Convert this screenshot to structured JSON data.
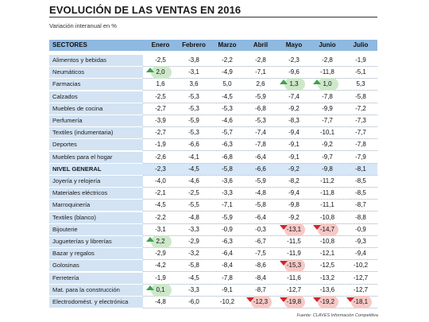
{
  "title": "EVOLUCIÓN DE LAS VENTAS EN 2016",
  "subtitle": "Variación interanual en %",
  "source": "Fuente: CLAVES Información Competitiva",
  "columns": [
    "SECTORES",
    "Enero",
    "Febrero",
    "Marzo",
    "Abril",
    "Mayo",
    "Junio",
    "Julio"
  ],
  "rows": [
    {
      "sector": "Alimentos y bebidas",
      "values": [
        "-2,5",
        "-3,8",
        "-2,2",
        "-2,8",
        "-2,3",
        "-2,8",
        "-1,9"
      ],
      "marks": [
        null,
        null,
        null,
        null,
        null,
        null,
        null
      ]
    },
    {
      "sector": "Neumáticos",
      "values": [
        "2,0",
        "-3,1",
        "-4,9",
        "-7,1",
        "-9,6",
        "-11,8",
        "-5,1"
      ],
      "marks": [
        "up",
        null,
        null,
        null,
        null,
        null,
        null
      ]
    },
    {
      "sector": "Farmacias",
      "values": [
        "1,6",
        "3,6",
        "5,0",
        "2,6",
        "1,3",
        "1,0",
        "5,3"
      ],
      "marks": [
        null,
        null,
        null,
        null,
        "up",
        "up",
        null
      ]
    },
    {
      "sector": "Calzados",
      "values": [
        "-2,5",
        "-5,3",
        "-4,5",
        "-5,9",
        "-7,4",
        "-7,8",
        "-5,8"
      ],
      "marks": [
        null,
        null,
        null,
        null,
        null,
        null,
        null
      ]
    },
    {
      "sector": "Muebles de cocina",
      "values": [
        "-2,7",
        "-5,3",
        "-5,3",
        "-6,8",
        "-9,2",
        "-9,9",
        "-7,2"
      ],
      "marks": [
        null,
        null,
        null,
        null,
        null,
        null,
        null
      ]
    },
    {
      "sector": "Perfumería",
      "values": [
        "-3,9",
        "-5,9",
        "-4,6",
        "-5,3",
        "-8,3",
        "-7,7",
        "-7,3"
      ],
      "marks": [
        null,
        null,
        null,
        null,
        null,
        null,
        null
      ]
    },
    {
      "sector": "Textiles (indumentaria)",
      "values": [
        "-2,7",
        "-5,3",
        "-5,7",
        "-7,4",
        "-9,4",
        "-10,1",
        "-7,7"
      ],
      "marks": [
        null,
        null,
        null,
        null,
        null,
        null,
        null
      ]
    },
    {
      "sector": "Deportes",
      "values": [
        "-1,9",
        "-6,6",
        "-6,3",
        "-7,8",
        "-9,1",
        "-9,2",
        "-7,8"
      ],
      "marks": [
        null,
        null,
        null,
        null,
        null,
        null,
        null
      ]
    },
    {
      "sector": "Muebles para el hogar",
      "values": [
        "-2,6",
        "-4,1",
        "-6,8",
        "-6,4",
        "-9,1",
        "-9,7",
        "-7,9"
      ],
      "marks": [
        null,
        null,
        null,
        null,
        null,
        null,
        null
      ]
    },
    {
      "sector": "NIVEL GENERAL",
      "values": [
        "-2,3",
        "-4,5",
        "-5,8",
        "-6,6",
        "-9,2",
        "-9,8",
        "-8,1"
      ],
      "marks": [
        null,
        null,
        null,
        null,
        null,
        null,
        null
      ],
      "level": true
    },
    {
      "sector": "Joyería y relojería",
      "values": [
        "-4,0",
        "-4,6",
        "-3,6",
        "-5,9",
        "-8,2",
        "-11,2",
        "-8,5"
      ],
      "marks": [
        null,
        null,
        null,
        null,
        null,
        null,
        null
      ]
    },
    {
      "sector": "Materiales eléctricos",
      "values": [
        "-2,1",
        "-2,5",
        "-3,3",
        "-4,8",
        "-9,4",
        "-11,8",
        "-8,5"
      ],
      "marks": [
        null,
        null,
        null,
        null,
        null,
        null,
        null
      ]
    },
    {
      "sector": "Marroquinería",
      "values": [
        "-4,5",
        "-5,5",
        "-7,1",
        "-5,8",
        "-9,8",
        "-11,1",
        "-8,7"
      ],
      "marks": [
        null,
        null,
        null,
        null,
        null,
        null,
        null
      ]
    },
    {
      "sector": "Textiles (blanco)",
      "values": [
        "-2,2",
        "-4,8",
        "-5,9",
        "-6,4",
        "-9,2",
        "-10,8",
        "-8,8"
      ],
      "marks": [
        null,
        null,
        null,
        null,
        null,
        null,
        null
      ]
    },
    {
      "sector": "Bijouterie",
      "values": [
        "-3,1",
        "-3,3",
        "-0,9",
        "-0,3",
        "-13,1",
        "-14,7",
        "-0,9"
      ],
      "marks": [
        null,
        null,
        null,
        null,
        "down",
        "down",
        null
      ]
    },
    {
      "sector": "Jugueterías y librerías",
      "values": [
        "2,2",
        "-2,9",
        "-6,3",
        "-6,7",
        "-11,5",
        "-10,8",
        "-9,3"
      ],
      "marks": [
        "up",
        null,
        null,
        null,
        null,
        null,
        null
      ]
    },
    {
      "sector": "Bazar y regalos",
      "values": [
        "-2,9",
        "-3,2",
        "-6,4",
        "-7,5",
        "-11,9",
        "-12,1",
        "-9,4"
      ],
      "marks": [
        null,
        null,
        null,
        null,
        null,
        null,
        null
      ]
    },
    {
      "sector": "Golosinas",
      "values": [
        "-4,2",
        "-5,8",
        "-8,4",
        "-8,6",
        "-15,3",
        "-12,5",
        "-10,2"
      ],
      "marks": [
        null,
        null,
        null,
        null,
        "down",
        null,
        null
      ]
    },
    {
      "sector": "Ferretería",
      "values": [
        "-1,9",
        "-4,5",
        "-7,8",
        "-8,4",
        "-11,6",
        "-13,2",
        "-12,7"
      ],
      "marks": [
        null,
        null,
        null,
        null,
        null,
        null,
        null
      ]
    },
    {
      "sector": "Mat. para la construcción",
      "values": [
        "0,1",
        "-3,3",
        "-9,1",
        "-8,7",
        "-12,7",
        "-13,6",
        "-12,7"
      ],
      "marks": [
        "up",
        null,
        null,
        null,
        null,
        null,
        null
      ]
    },
    {
      "sector": "Electrodomést. y electrónica",
      "values": [
        "-4,8",
        "-6,0",
        "-10,2",
        "-12,3",
        "-19,8",
        "-19,2",
        "-18,1"
      ],
      "marks": [
        null,
        null,
        null,
        "down",
        "down",
        "down",
        "down"
      ]
    }
  ],
  "colors": {
    "header": "#8fb9e0",
    "label_bg": "#d3e3f3",
    "up": "#3ba34a",
    "down": "#d6232a"
  }
}
